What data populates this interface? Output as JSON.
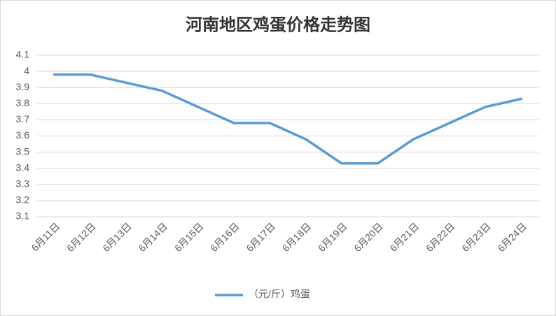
{
  "chart_data": {
    "type": "line",
    "title": "河南地区鸡蛋价格走势图",
    "categories": [
      "6月11日",
      "6月12日",
      "6月13日",
      "6月14日",
      "6月15日",
      "6月16日",
      "6月17日",
      "6月18日",
      "6月19日",
      "6月20日",
      "6月21日",
      "6月22日",
      "6月23日",
      "6月24日"
    ],
    "series": [
      {
        "name": "（元/斤）鸡蛋",
        "color": "#5b9bd5",
        "values": [
          3.98,
          3.98,
          3.93,
          3.88,
          3.78,
          3.68,
          3.68,
          3.58,
          3.43,
          3.43,
          3.58,
          3.68,
          3.78,
          3.83
        ]
      }
    ],
    "ylim": [
      3.1,
      4.1
    ],
    "yticks": [
      3.1,
      3.2,
      3.3,
      3.4,
      3.5,
      3.6,
      3.7,
      3.8,
      3.9,
      4,
      4.1
    ],
    "grid": true,
    "legend": "bottom"
  }
}
